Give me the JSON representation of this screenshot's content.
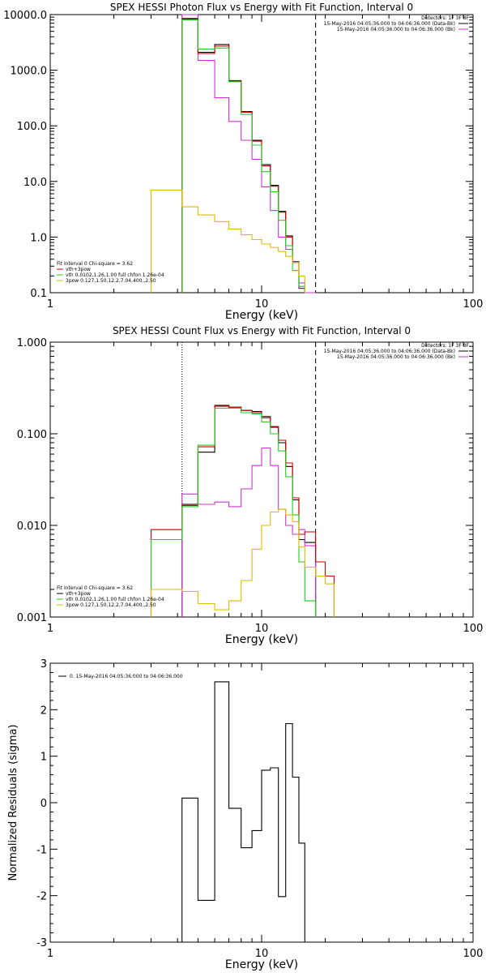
{
  "chart_data": [
    {
      "type": "line",
      "title": "SPEX HESSI Photon Flux vs Energy with Fit Function, Interval 0",
      "xlabel": "Energy (keV)",
      "ylabel": "",
      "xscale": "log",
      "yscale": "log",
      "xlim": [
        1,
        100
      ],
      "ylim": [
        0.1,
        10000
      ],
      "x_ticks": [
        "1",
        "10",
        "100"
      ],
      "y_ticks": [
        "0.1",
        "1.0",
        "10.0",
        "100.0",
        "1000.0",
        "10000.0"
      ],
      "detectors_label": "Detectors: 1F 3F 8F",
      "legend_right": [
        {
          "text": "15-May-2016 04:05:36.000 to 04:06:36.000 (Data-Bk)",
          "color": "#000000"
        },
        {
          "text": "15-May-2016 04:05:36.000 to 04:06:36.000 (Bk)",
          "color": "#cc33cc"
        }
      ],
      "fit_lines": [
        {
          "text": "Fit Interval 0   Chi-square = 3.62",
          "color": ""
        },
        {
          "text": "vth+3pow",
          "color": "#cc0000"
        },
        {
          "text": "vth 0.0102,1.26,1.00  full chfon 1.26e-04",
          "color": "#22cc22"
        },
        {
          "text": "3pow 0.127,1.50,12.2,7.04,400.,2.50",
          "color": "#ddbb00"
        }
      ],
      "vlines": [
        {
          "x": 4.2,
          "style": "solid",
          "color": "#cc33cc"
        },
        {
          "x": 18.0,
          "style": "dashed",
          "color": "#000000"
        }
      ],
      "edges": [
        3.0,
        4.2,
        5.0,
        6.0,
        7.0,
        8.0,
        9.0,
        10.0,
        11.0,
        12.0,
        13.0,
        14.0,
        15.0,
        16.0,
        18.0
      ],
      "series": [
        {
          "name": "Data-Bk",
          "color": "#000000",
          "values": [
            null,
            8500,
            2100,
            2900,
            650,
            180,
            55,
            20,
            8.5,
            2.9,
            1.05,
            0.36,
            0.12,
            0.1
          ]
        },
        {
          "name": "Bk",
          "color": "#cc33cc",
          "values": [
            null,
            10500,
            1500,
            320,
            120,
            55,
            25,
            8.0,
            3.0,
            1.0,
            0.6,
            0.35,
            0.15,
            0.1
          ]
        },
        {
          "name": "vth+3pow",
          "color": "#cc0000",
          "values": [
            null,
            8300,
            2000,
            2700,
            640,
            175,
            53,
            19,
            8.2,
            2.8,
            1.0,
            0.35,
            0.12,
            null
          ]
        },
        {
          "name": "vth 0.0102,1.26,1.00",
          "color": "#22cc22",
          "values": [
            null,
            8000,
            2400,
            2500,
            620,
            160,
            45,
            15,
            6.5,
            2.0,
            0.7,
            0.25,
            0.13,
            null
          ]
        },
        {
          "name": "3pow 0.127,1.50,12.2,7.04,400.,2.50",
          "color": "#ddbb00",
          "values": [
            7.0,
            3.5,
            2.5,
            1.9,
            1.4,
            1.1,
            0.9,
            0.75,
            0.65,
            0.55,
            0.45,
            0.35,
            0.2,
            null
          ]
        }
      ]
    },
    {
      "type": "line",
      "title": "SPEX HESSI Count Flux vs Energy with Fit Function, Interval 0",
      "xlabel": "Energy (keV)",
      "ylabel": "",
      "xscale": "log",
      "yscale": "log",
      "xlim": [
        1,
        100
      ],
      "ylim": [
        0.001,
        1.0
      ],
      "x_ticks": [
        "1",
        "10",
        "100"
      ],
      "y_ticks": [
        "0.001",
        "0.010",
        "0.100",
        "1.000"
      ],
      "detectors_label": "Detectors: 1F 3F 8F",
      "legend_right": [
        {
          "text": "15-May-2016 04:05:36.000 to 04:06:36.000 (Data-Bk)",
          "color": "#000000"
        },
        {
          "text": "15-May-2016 04:05:36.000 to 04:06:36.000 (Bk)",
          "color": "#cc33cc"
        }
      ],
      "fit_lines": [
        {
          "text": "Fit Interval 0   Chi-square = 3.62",
          "color": ""
        },
        {
          "text": "vth+3pow",
          "color": "#000000"
        },
        {
          "text": "vth 0.0102,1.26,1.00  full chfon 1.26e-04",
          "color": "#22cc22"
        },
        {
          "text": "3pow 0.127,1.50,12.2,7.04,400.,2.50",
          "color": "#ddbb00"
        }
      ],
      "vlines": [
        {
          "x": 4.2,
          "style": "dotted",
          "color": "#000000"
        },
        {
          "x": 18.0,
          "style": "dashed",
          "color": "#000000"
        }
      ],
      "edges": [
        3.0,
        4.2,
        5.0,
        6.0,
        7.0,
        8.0,
        9.0,
        10.0,
        11.0,
        12.0,
        13.0,
        14.0,
        15.0,
        16.0,
        18.0,
        20.0,
        22.0
      ],
      "series": [
        {
          "name": "Data-Bk",
          "color": "#000000",
          "values": [
            null,
            0.017,
            0.063,
            0.2,
            0.195,
            0.18,
            0.175,
            0.15,
            0.118,
            0.08,
            0.044,
            0.019,
            0.007,
            0.0065,
            null,
            null
          ]
        },
        {
          "name": "Bk",
          "color": "#cc33cc",
          "values": [
            null,
            0.022,
            0.017,
            0.018,
            0.016,
            0.025,
            0.045,
            0.07,
            0.045,
            0.015,
            0.01,
            0.008,
            0.009,
            0.006,
            null,
            null
          ]
        },
        {
          "name": "vth+3pow",
          "color": "#cc0000",
          "values": [
            0.009,
            0.0165,
            0.072,
            0.205,
            0.195,
            0.18,
            0.17,
            0.155,
            0.12,
            0.085,
            0.048,
            0.02,
            0.008,
            0.0085,
            0.004,
            0.0028
          ]
        },
        {
          "name": "vth 0.0102,1.26,1.00",
          "color": "#22cc22",
          "values": [
            0.007,
            0.016,
            0.075,
            0.19,
            0.19,
            0.17,
            0.165,
            0.135,
            0.1,
            0.065,
            0.034,
            0.013,
            0.004,
            0.0015,
            null,
            null
          ]
        },
        {
          "name": "3pow 0.127,1.50,12.2,7.04,400.,2.50",
          "color": "#ddbb00",
          "values": [
            0.002,
            0.0019,
            0.0014,
            0.0012,
            0.0015,
            0.0025,
            0.0055,
            0.01,
            0.014,
            0.015,
            0.013,
            0.011,
            0.0058,
            0.0035,
            0.0028,
            0.0023
          ]
        }
      ]
    },
    {
      "type": "line",
      "title": "",
      "xlabel": "Energy (keV)",
      "ylabel": "Normalized Residuals (sigma)",
      "xscale": "log",
      "yscale": "linear",
      "xlim": [
        1,
        100
      ],
      "ylim": [
        -3,
        3
      ],
      "x_ticks": [
        "1",
        "10",
        "100"
      ],
      "y_ticks": [
        "-3",
        "-2",
        "-1",
        "0",
        "1",
        "2",
        "3"
      ],
      "legend_right": [],
      "legend_left": [
        {
          "text": "0. 15-May-2016 04:05:36.000 to 04:06:36.000",
          "color": "#000000"
        }
      ],
      "fit_lines": [],
      "vlines": [],
      "edges": [
        4.2,
        5.0,
        6.0,
        7.0,
        8.0,
        9.0,
        10.0,
        11.0,
        12.0,
        13.0,
        14.0,
        15.0,
        16.0,
        18.0
      ],
      "series": [
        {
          "name": "0. 15-May-2016 04:05:36.000 to 04:06:36.000",
          "color": "#000000",
          "values": [
            0.1,
            -2.1,
            2.6,
            -0.12,
            -0.97,
            -0.6,
            0.7,
            0.75,
            -2.02,
            1.7,
            0.55,
            -0.87,
            -3.0
          ]
        }
      ]
    }
  ]
}
